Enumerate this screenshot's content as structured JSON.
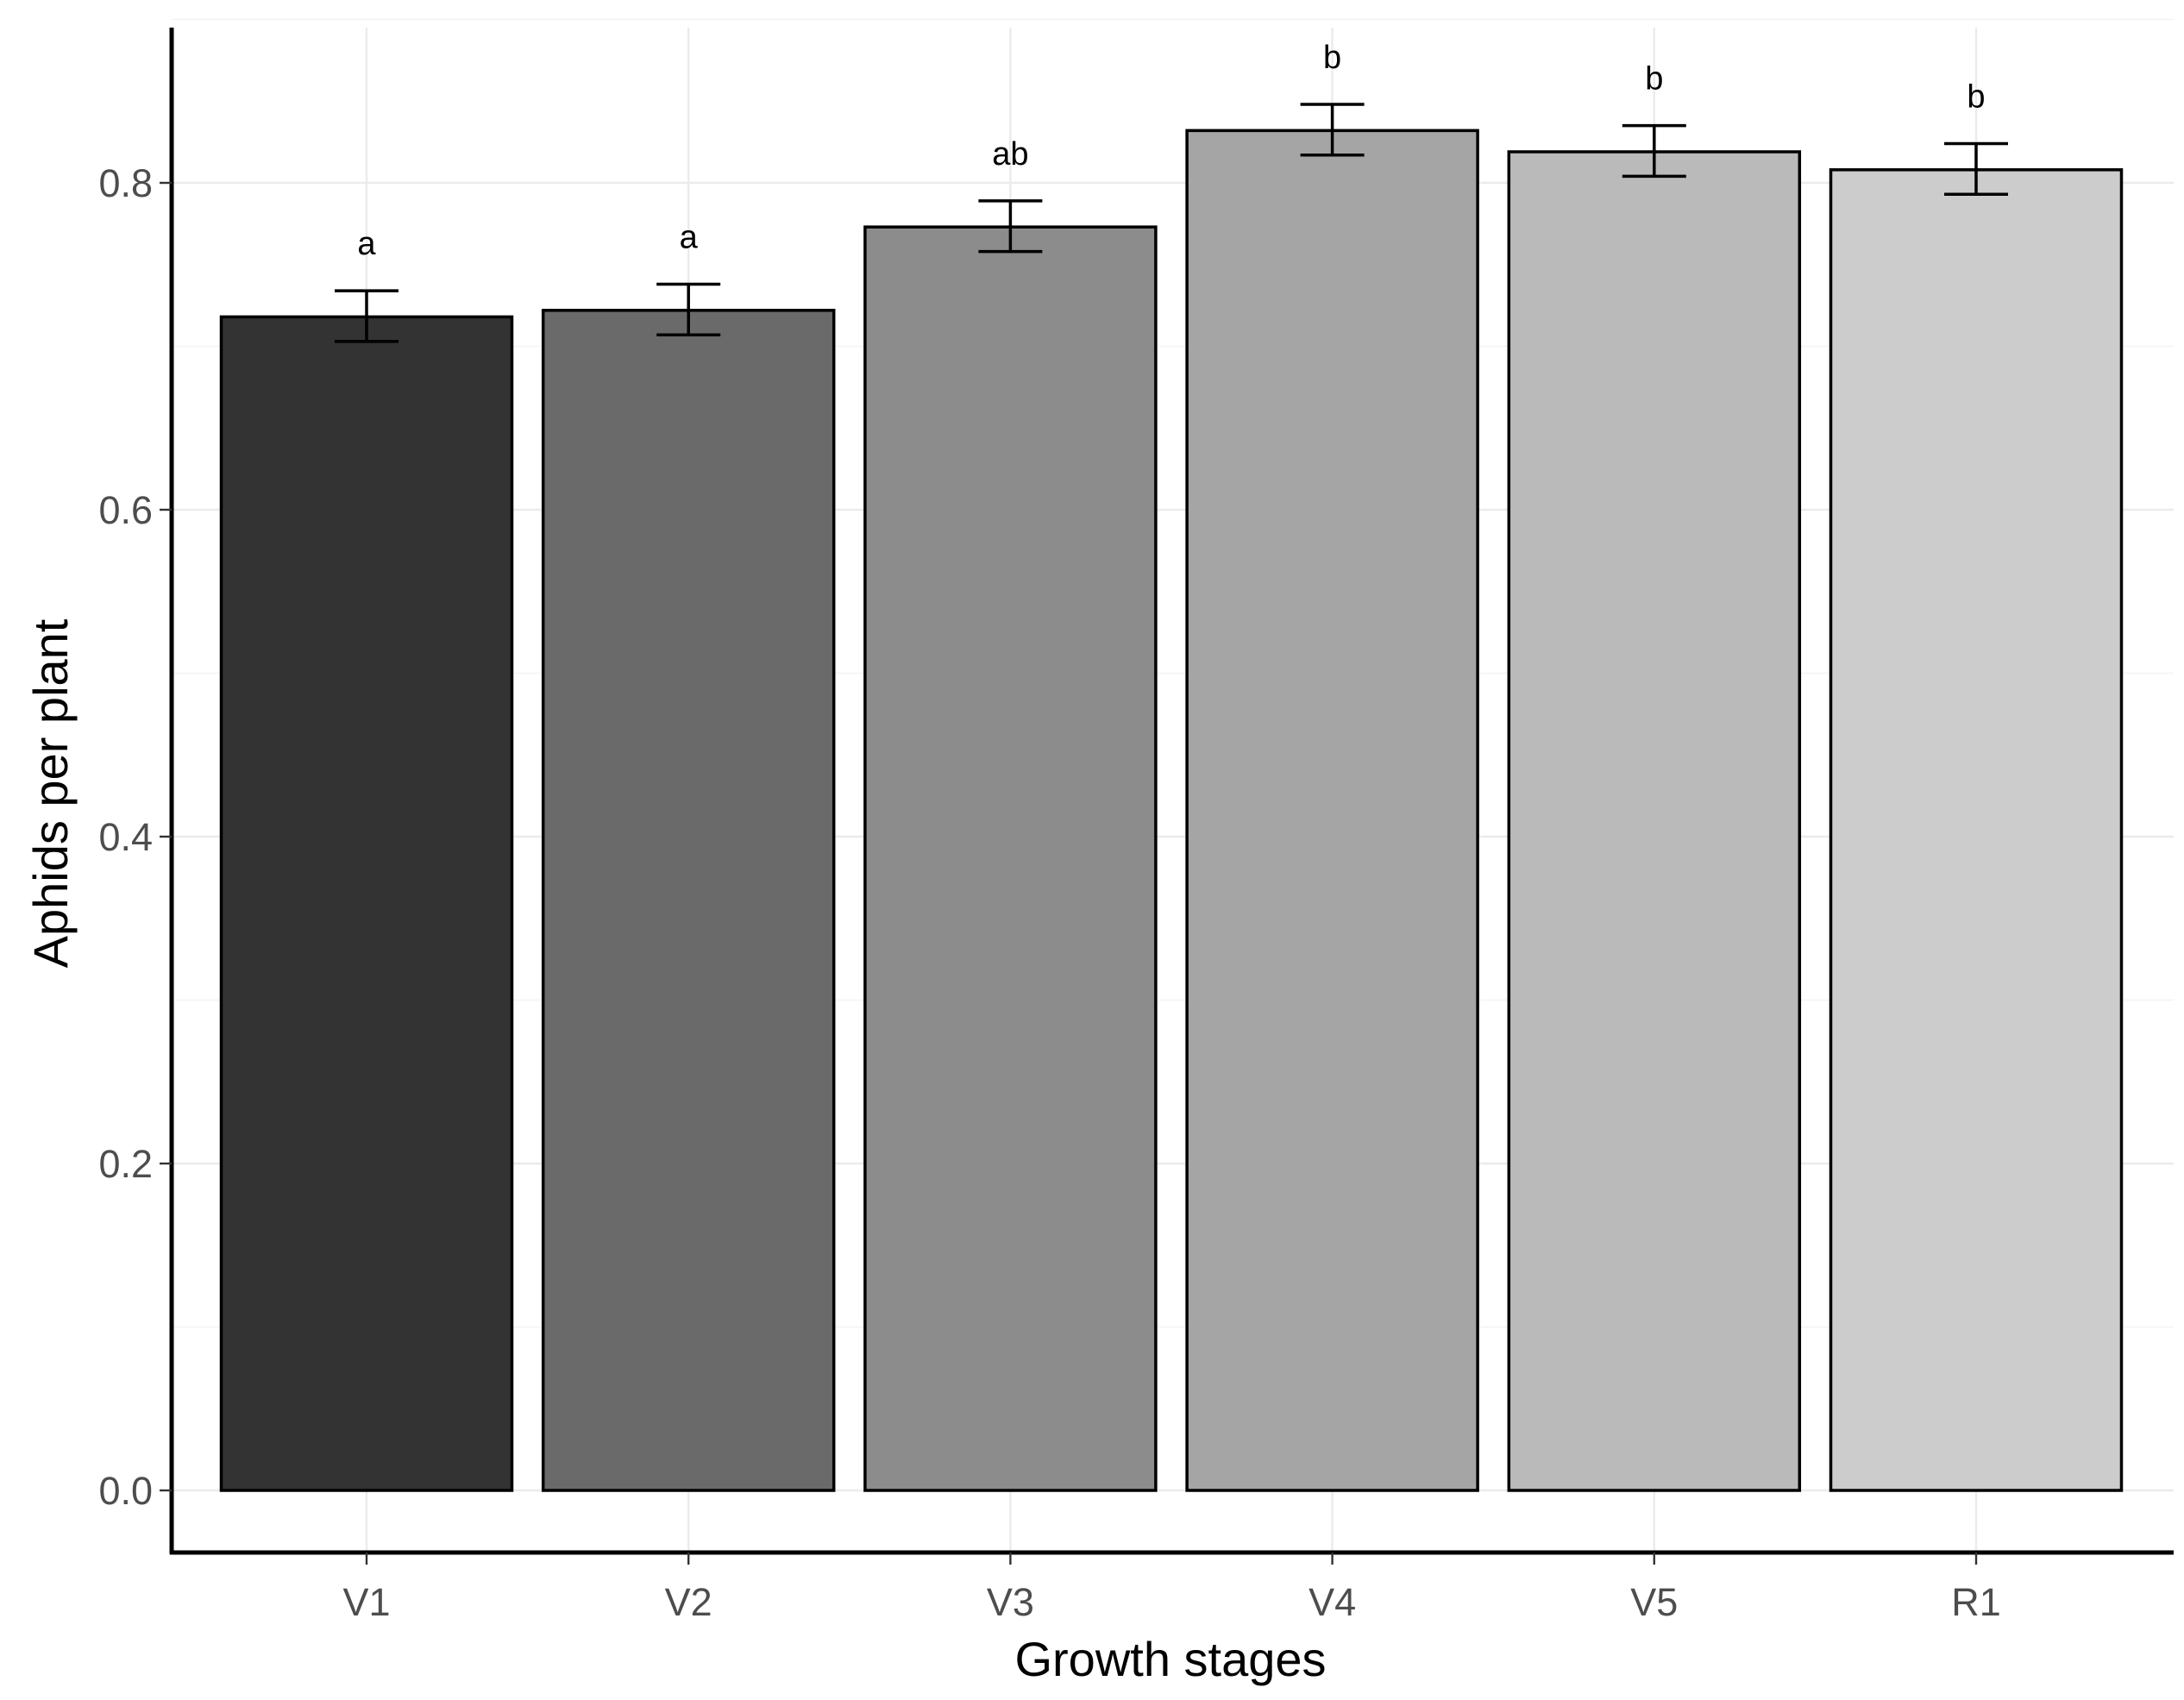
{
  "chart_data": {
    "type": "bar",
    "xlabel": "Growth stages",
    "ylabel": "Aphids per plant",
    "ylim": [
      -0.04,
      0.89
    ],
    "yticks": [
      "0.0",
      "0.2",
      "0.4",
      "0.6",
      "0.8"
    ],
    "grid": true,
    "categories": [
      "V1",
      "V2",
      "V3",
      "V4",
      "V5",
      "R1"
    ],
    "values": [
      0.718,
      0.722,
      0.773,
      0.832,
      0.819,
      0.808
    ],
    "error_low": [
      0.703,
      0.707,
      0.758,
      0.817,
      0.804,
      0.793
    ],
    "error_high": [
      0.734,
      0.738,
      0.789,
      0.848,
      0.835,
      0.824
    ],
    "significance_labels": [
      "a",
      "a",
      "ab",
      "b",
      "b",
      "b"
    ],
    "bar_colors": [
      "#333333",
      "#6a6a6a",
      "#8c8c8c",
      "#a5a5a5",
      "#bababa",
      "#cccccc"
    ]
  }
}
